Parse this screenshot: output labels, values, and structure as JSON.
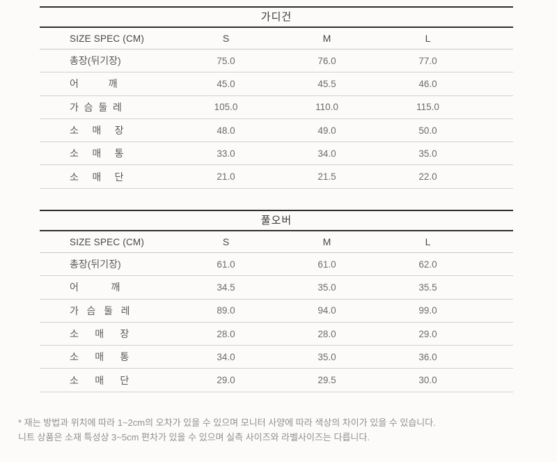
{
  "page": {
    "background_color": "#fcfbfa",
    "dark_border_color": "#2d2d2d",
    "light_border_color": "#d3d1cf"
  },
  "tables": [
    {
      "title": "가디건",
      "header": {
        "label": "SIZE SPEC (CM)",
        "sizes": [
          "S",
          "M",
          "L"
        ]
      },
      "rows": [
        {
          "label": "총장(뒤기장)",
          "values": [
            "75.0",
            "76.0",
            "77.0"
          ]
        },
        {
          "label": "어           깨",
          "values": [
            "45.0",
            "45.5",
            "46.0"
          ]
        },
        {
          "label": "가  슴  둘  레",
          "values": [
            "105.0",
            "110.0",
            "115.0"
          ]
        },
        {
          "label": "소     매     장",
          "values": [
            "48.0",
            "49.0",
            "50.0"
          ]
        },
        {
          "label": "소     매     통",
          "values": [
            "33.0",
            "34.0",
            "35.0"
          ]
        },
        {
          "label": "소     매     단",
          "values": [
            "21.0",
            "21.5",
            "22.0"
          ]
        }
      ]
    },
    {
      "title": "풀오버",
      "header": {
        "label": "SIZE SPEC (CM)",
        "sizes": [
          "S",
          "M",
          "L"
        ]
      },
      "rows": [
        {
          "label": "총장(뒤기장)",
          "values": [
            "61.0",
            "61.0",
            "62.0"
          ]
        },
        {
          "label": "어            깨",
          "values": [
            "34.5",
            "35.0",
            "35.5"
          ]
        },
        {
          "label": "가   슴   둘   레",
          "values": [
            "89.0",
            "94.0",
            "99.0"
          ]
        },
        {
          "label": "소      매      장",
          "values": [
            "28.0",
            "28.0",
            "29.0"
          ]
        },
        {
          "label": "소      매      통",
          "values": [
            "34.0",
            "35.0",
            "36.0"
          ]
        },
        {
          "label": "소      매      단",
          "values": [
            "29.0",
            "29.5",
            "30.0"
          ]
        }
      ]
    }
  ],
  "footnote": {
    "line1": "* 재는 방법과 위치에 따라 1~2cm의 오차가 있을 수 있으며 모니터 사양에 따라 색상의 차이가 있을 수 있습니다.",
    "line2": "니트 상품은 소재 특성상 3~5cm 편차가 있을 수 있으며 실측 사이즈와 라벨사이즈는 다릅니다."
  }
}
